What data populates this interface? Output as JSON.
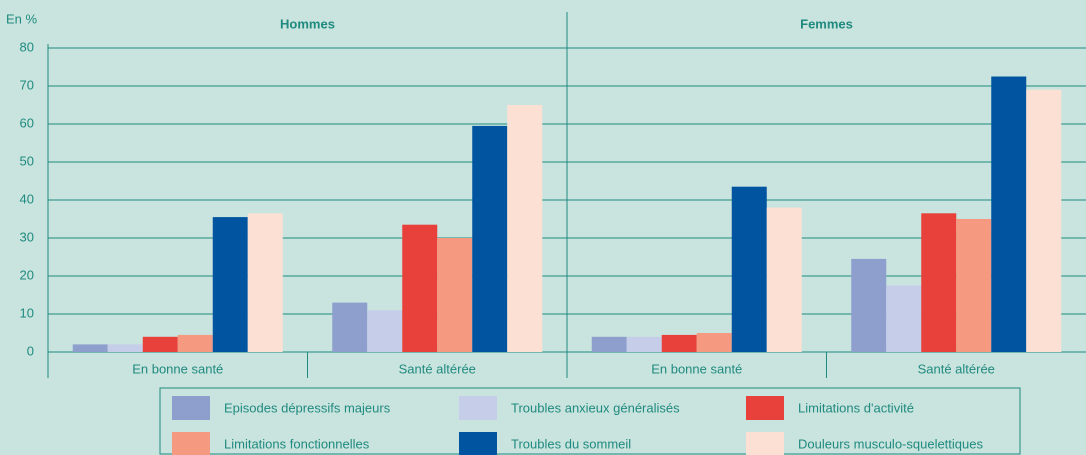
{
  "chart_data": {
    "type": "bar",
    "y_label": "En %",
    "groups": [
      "Hommes",
      "Femmes"
    ],
    "categories": [
      "En bonne santé",
      "Santé altérée",
      "En bonne santé",
      "Santé altérée"
    ],
    "series": [
      {
        "name": "Episodes dépressifs majeurs",
        "color": "#8e9fce",
        "values": [
          2,
          13,
          4,
          24.5
        ]
      },
      {
        "name": "Troubles anxieux généralisés",
        "color": "#c6cde9",
        "values": [
          2,
          11,
          4,
          17.5
        ]
      },
      {
        "name": "Limitations d'activité",
        "color": "#e8403a",
        "values": [
          4,
          33.5,
          4.5,
          36.5
        ]
      },
      {
        "name": "Limitations fonctionnelles",
        "color": "#f59a80",
        "values": [
          4.5,
          30,
          5,
          35
        ]
      },
      {
        "name": "Troubles du sommeil",
        "color": "#0054a0",
        "values": [
          35.5,
          59.5,
          43.5,
          72.5
        ]
      },
      {
        "name": "Douleurs musculo-squelettiques",
        "color": "#fde0d4",
        "values": [
          36.5,
          65,
          38,
          69
        ]
      }
    ],
    "ylim": [
      0,
      80
    ],
    "yticks": [
      0,
      10,
      20,
      30,
      40,
      50,
      60,
      70,
      80
    ],
    "grid": true
  }
}
